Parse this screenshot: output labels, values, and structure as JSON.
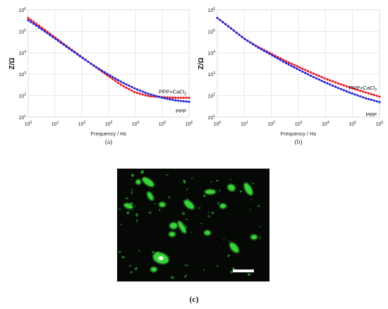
{
  "chart_data": [
    {
      "type": "line",
      "panel": "a",
      "caption": "(a)",
      "xlabel": "Frequency / Hz",
      "ylabel": "Z/Ω",
      "x_scale": "log",
      "y_scale": "log",
      "xlim": [
        1,
        1000000
      ],
      "ylim": [
        10,
        1000000
      ],
      "x_ticks": [
        {
          "v": 1,
          "m": "10",
          "e": "0"
        },
        {
          "v": 10,
          "m": "10",
          "e": "1"
        },
        {
          "v": 100,
          "m": "10",
          "e": "2"
        },
        {
          "v": 1000,
          "m": "10",
          "e": "3"
        },
        {
          "v": 10000,
          "m": "10",
          "e": "4"
        },
        {
          "v": 100000,
          "m": "10",
          "e": "5"
        },
        {
          "v": 1000000,
          "m": "10",
          "e": "6"
        }
      ],
      "y_ticks": [
        {
          "v": 10,
          "m": "10",
          "e": "1"
        },
        {
          "v": 100,
          "m": "10",
          "e": "2"
        },
        {
          "v": 1000,
          "m": "10",
          "e": "3"
        },
        {
          "v": 10000,
          "m": "10",
          "e": "4"
        },
        {
          "v": 100000,
          "m": "10",
          "e": "5"
        },
        {
          "v": 1000000,
          "m": "10",
          "e": "6"
        }
      ],
      "grid": true,
      "series": [
        {
          "name": "PPP+CaCl",
          "name_sub": "2",
          "color": "#e8202a",
          "x": [
            1,
            3.16,
            10,
            31.6,
            100,
            316,
            1000,
            3160,
            10000,
            31600,
            100000,
            316000,
            1000000
          ],
          "y": [
            420000,
            150000,
            52000,
            18000,
            6300,
            2200,
            800,
            300,
            140,
            95,
            85,
            80,
            80
          ]
        },
        {
          "name": "PPP",
          "color": "#2b2bd6",
          "x": [
            1,
            3.16,
            10,
            31.6,
            100,
            316,
            1000,
            3160,
            10000,
            31600,
            100000,
            316000,
            1000000
          ],
          "y": [
            330000,
            125000,
            46000,
            16500,
            6000,
            2300,
            950,
            420,
            210,
            120,
            80,
            60,
            52
          ]
        }
      ]
    },
    {
      "type": "line",
      "panel": "b",
      "caption": "(b)",
      "xlabel": "Frequency / Hz",
      "ylabel": "Z/Ω",
      "x_scale": "log",
      "y_scale": "log",
      "xlim": [
        1,
        1000000
      ],
      "ylim": [
        10,
        1000000
      ],
      "x_ticks": [
        {
          "v": 1,
          "m": "10",
          "e": "0"
        },
        {
          "v": 10,
          "m": "10",
          "e": "1"
        },
        {
          "v": 100,
          "m": "10",
          "e": "2"
        },
        {
          "v": 1000,
          "m": "10",
          "e": "3"
        },
        {
          "v": 10000,
          "m": "10",
          "e": "4"
        },
        {
          "v": 100000,
          "m": "10",
          "e": "5"
        },
        {
          "v": 1000000,
          "m": "10",
          "e": "6"
        }
      ],
      "y_ticks": [
        {
          "v": 10,
          "m": "10",
          "e": "1"
        },
        {
          "v": 100,
          "m": "10",
          "e": "2"
        },
        {
          "v": 1000,
          "m": "10",
          "e": "3"
        },
        {
          "v": 10000,
          "m": "10",
          "e": "4"
        },
        {
          "v": 100000,
          "m": "10",
          "e": "5"
        },
        {
          "v": 1000000,
          "m": "10",
          "e": "6"
        }
      ],
      "grid": true,
      "series": [
        {
          "name": "PRP+CaCl",
          "name_sub": "2",
          "color": "#e8202a",
          "x": [
            1,
            3.16,
            10,
            31.6,
            100,
            316,
            1000,
            3160,
            10000,
            31600,
            100000,
            316000,
            1000000
          ],
          "y": [
            420000,
            140000,
            45000,
            19000,
            9000,
            4300,
            2200,
            1150,
            620,
            360,
            220,
            140,
            90
          ]
        },
        {
          "name": "PRP",
          "color": "#2b2bd6",
          "x": [
            1,
            3.16,
            10,
            31.6,
            100,
            316,
            1000,
            3160,
            10000,
            31600,
            100000,
            316000,
            1000000
          ],
          "y": [
            420000,
            140000,
            45000,
            18000,
            8000,
            3500,
            1650,
            800,
            410,
            220,
            125,
            75,
            50
          ]
        }
      ]
    }
  ],
  "micrograph": {
    "caption": "(c)",
    "background": "#050805",
    "particle_color": "#38d23a",
    "scale_bar_color": "#ffffff"
  }
}
